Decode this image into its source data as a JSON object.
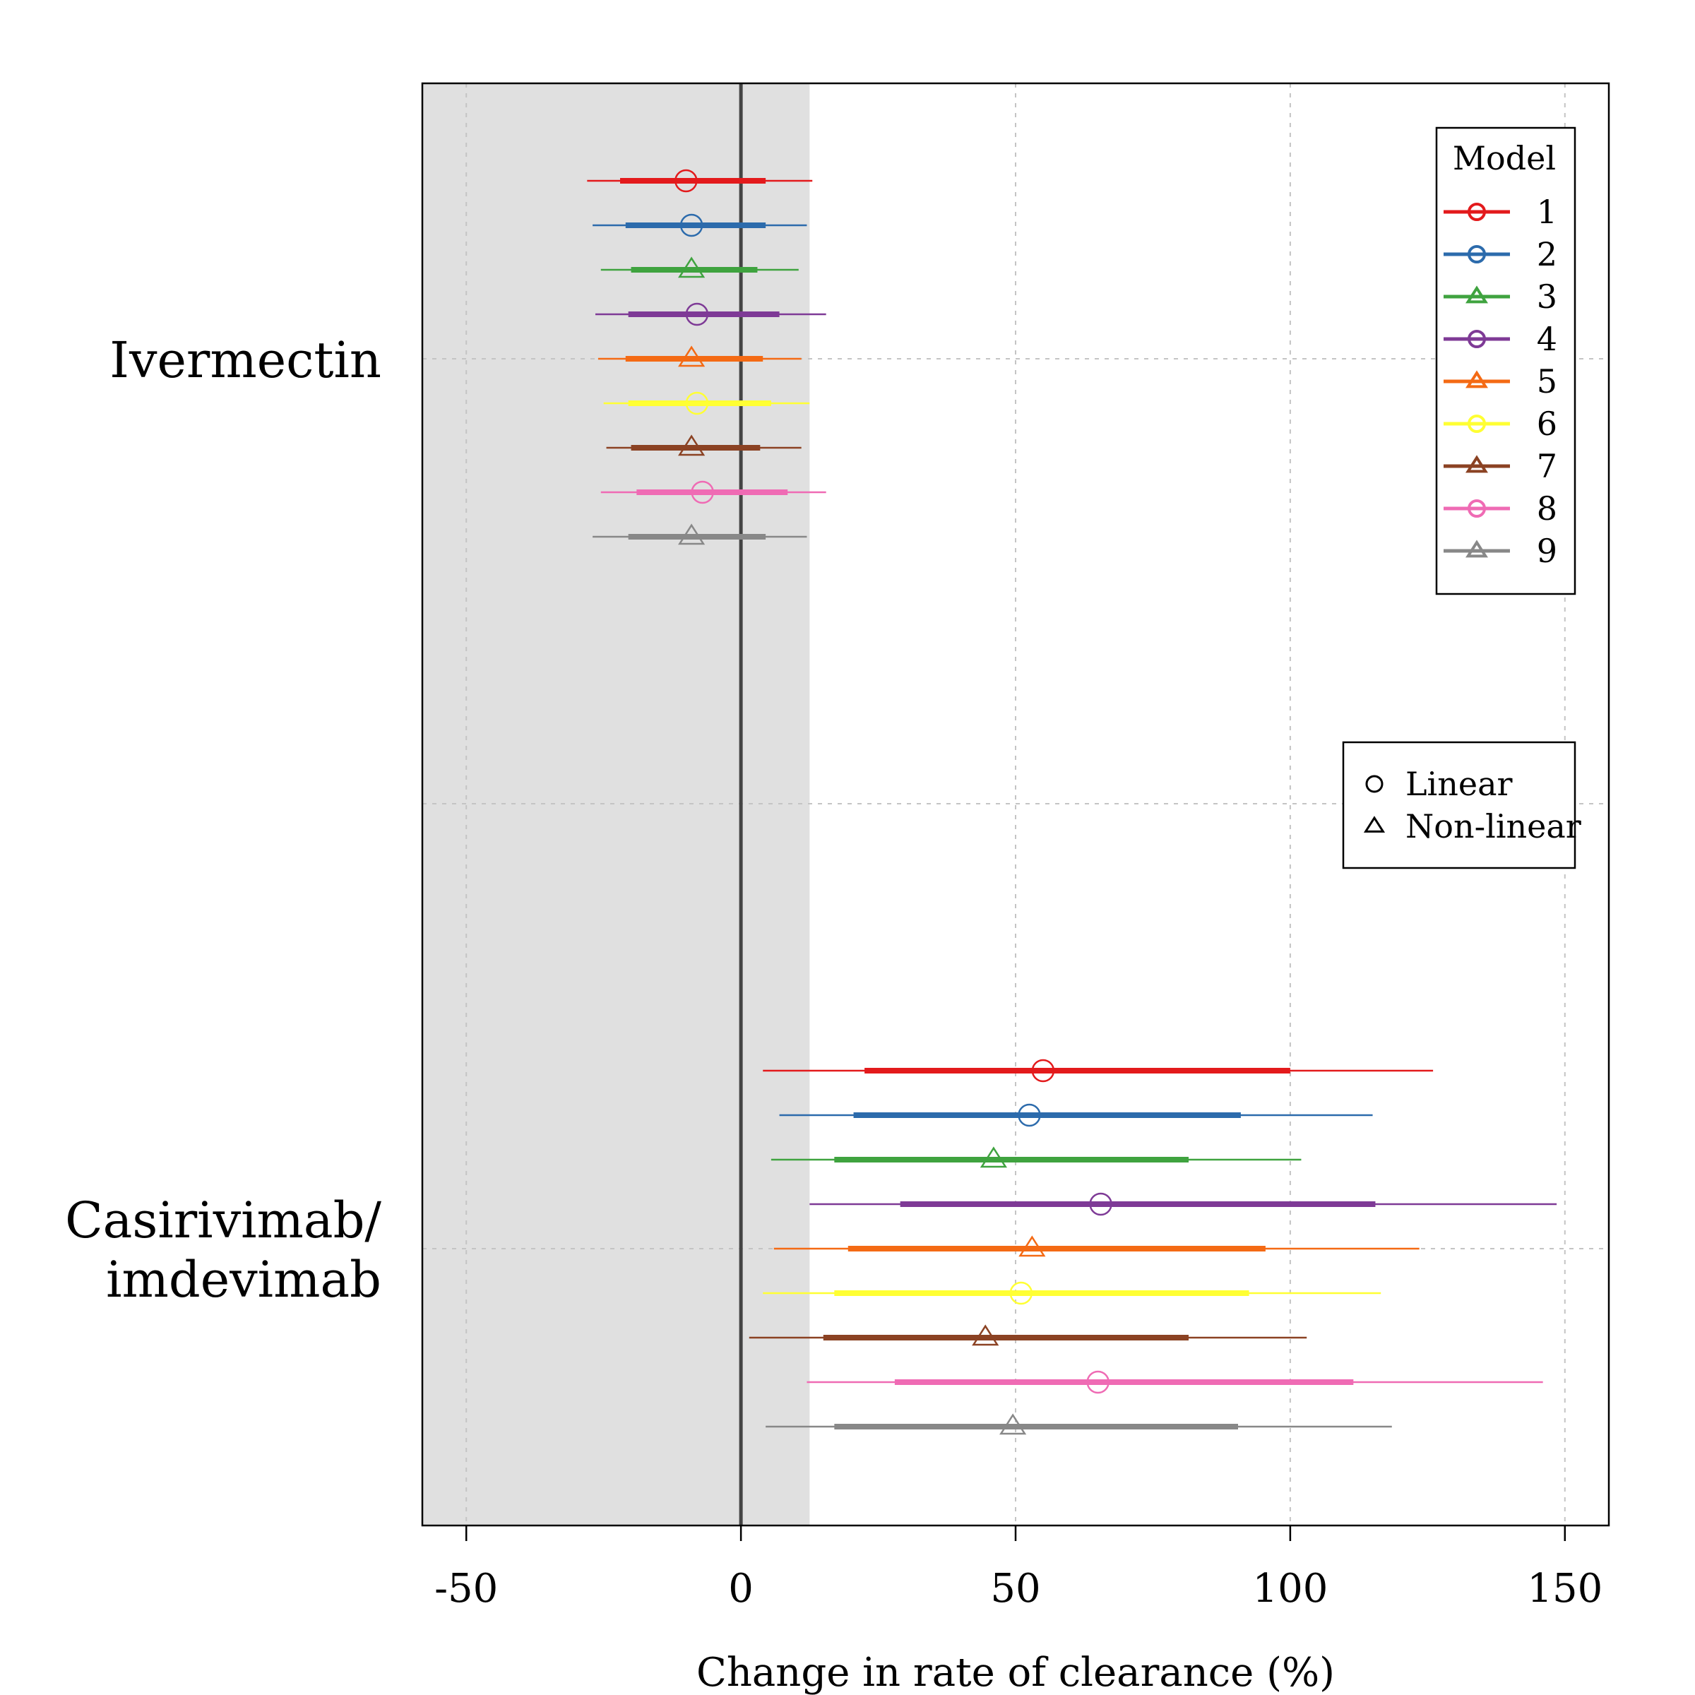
{
  "chart_data": {
    "type": "forest",
    "xlabel": "Change in rate of clearance (%)",
    "xlim": [
      -58,
      158
    ],
    "xticks": [
      -50,
      0,
      50,
      100,
      150
    ],
    "xtick_labels": [
      "-50",
      "0",
      "50",
      "100",
      "150"
    ],
    "reference_line": 0,
    "shaded_region": [
      -58,
      12.5
    ],
    "grid": true,
    "groups": [
      {
        "label_lines": [
          "Ivermectin"
        ]
      },
      {
        "label_lines": [
          "Casirivimab/",
          "imdevimab"
        ]
      }
    ],
    "legend_models": {
      "title": "Model",
      "position": "top-right",
      "entries": [
        {
          "label": "1",
          "color": "#E31A1C",
          "shape": "circle"
        },
        {
          "label": "2",
          "color": "#2C6BAC",
          "shape": "circle"
        },
        {
          "label": "3",
          "color": "#3FA33F",
          "shape": "triangle"
        },
        {
          "label": "4",
          "color": "#7E3A96",
          "shape": "circle"
        },
        {
          "label": "5",
          "color": "#F46A14",
          "shape": "triangle"
        },
        {
          "label": "6",
          "color": "#FFFF33",
          "shape": "circle"
        },
        {
          "label": "7",
          "color": "#8B4223",
          "shape": "triangle"
        },
        {
          "label": "8",
          "color": "#EF6BB4",
          "shape": "circle"
        },
        {
          "label": "9",
          "color": "#888888",
          "shape": "triangle"
        }
      ]
    },
    "legend_shapes": {
      "position": "right",
      "entries": [
        {
          "label": "Linear",
          "shape": "circle"
        },
        {
          "label": "Non-linear",
          "shape": "triangle"
        }
      ]
    },
    "series": [
      {
        "group": "Ivermectin",
        "model": "1",
        "estimate": -10,
        "ci80": [
          -22,
          4.5
        ],
        "ci95": [
          -28,
          13
        ]
      },
      {
        "group": "Ivermectin",
        "model": "2",
        "estimate": -9,
        "ci80": [
          -21,
          4.5
        ],
        "ci95": [
          -27,
          12
        ]
      },
      {
        "group": "Ivermectin",
        "model": "3",
        "estimate": -9,
        "ci80": [
          -20,
          3
        ],
        "ci95": [
          -25.5,
          10.5
        ]
      },
      {
        "group": "Ivermectin",
        "model": "4",
        "estimate": -8,
        "ci80": [
          -20.5,
          7
        ],
        "ci95": [
          -26.5,
          15.5
        ]
      },
      {
        "group": "Ivermectin",
        "model": "5",
        "estimate": -9,
        "ci80": [
          -21,
          4
        ],
        "ci95": [
          -26,
          11
        ]
      },
      {
        "group": "Ivermectin",
        "model": "6",
        "estimate": -8,
        "ci80": [
          -20.5,
          5.5
        ],
        "ci95": [
          -25,
          12.5
        ]
      },
      {
        "group": "Ivermectin",
        "model": "7",
        "estimate": -9,
        "ci80": [
          -20,
          3.5
        ],
        "ci95": [
          -24.5,
          11
        ]
      },
      {
        "group": "Ivermectin",
        "model": "8",
        "estimate": -7,
        "ci80": [
          -19,
          8.5
        ],
        "ci95": [
          -25.5,
          15.5
        ]
      },
      {
        "group": "Ivermectin",
        "model": "9",
        "estimate": -9,
        "ci80": [
          -20.5,
          4.5
        ],
        "ci95": [
          -27,
          12
        ]
      },
      {
        "group": "Casirivimab/imdevimab",
        "model": "1",
        "estimate": 55,
        "ci80": [
          22.5,
          100
        ],
        "ci95": [
          4,
          126
        ]
      },
      {
        "group": "Casirivimab/imdevimab",
        "model": "2",
        "estimate": 52.5,
        "ci80": [
          20.5,
          91
        ],
        "ci95": [
          7,
          115
        ]
      },
      {
        "group": "Casirivimab/imdevimab",
        "model": "3",
        "estimate": 46,
        "ci80": [
          17,
          81.5
        ],
        "ci95": [
          5.5,
          102
        ]
      },
      {
        "group": "Casirivimab/imdevimab",
        "model": "4",
        "estimate": 65.5,
        "ci80": [
          29,
          115.5
        ],
        "ci95": [
          12.5,
          148.5
        ]
      },
      {
        "group": "Casirivimab/imdevimab",
        "model": "5",
        "estimate": 53,
        "ci80": [
          19.5,
          95.5
        ],
        "ci95": [
          6,
          123.5
        ]
      },
      {
        "group": "Casirivimab/imdevimab",
        "model": "6",
        "estimate": 51,
        "ci80": [
          17,
          92.5
        ],
        "ci95": [
          4,
          116.5
        ]
      },
      {
        "group": "Casirivimab/imdevimab",
        "model": "7",
        "estimate": 44.5,
        "ci80": [
          15,
          81.5
        ],
        "ci95": [
          1.5,
          103
        ]
      },
      {
        "group": "Casirivimab/imdevimab",
        "model": "8",
        "estimate": 65,
        "ci80": [
          28,
          111.5
        ],
        "ci95": [
          12,
          146
        ]
      },
      {
        "group": "Casirivimab/imdevimab",
        "model": "9",
        "estimate": 49.5,
        "ci80": [
          17,
          90.5
        ],
        "ci95": [
          4.5,
          118.5
        ]
      }
    ]
  }
}
